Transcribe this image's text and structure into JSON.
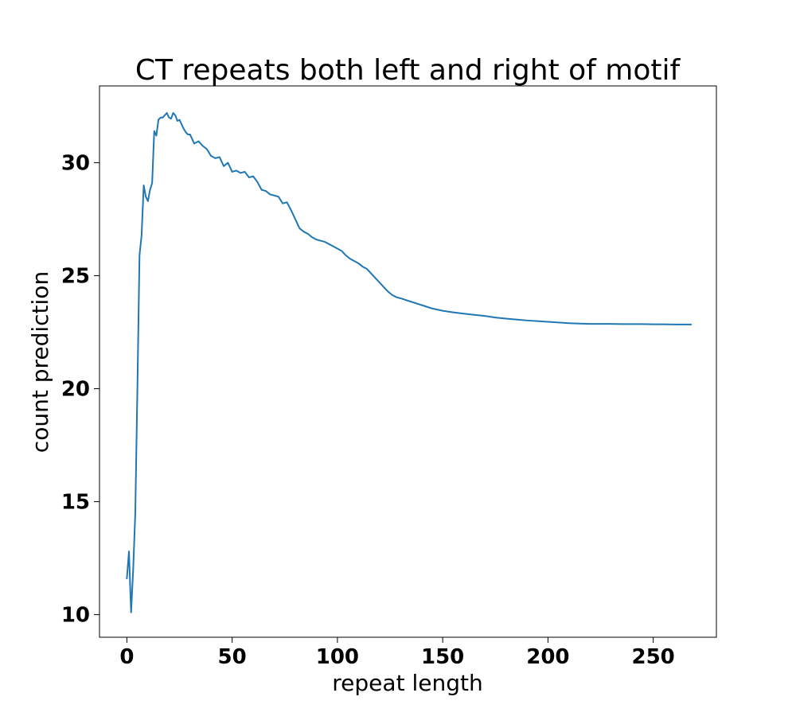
{
  "chart_data": {
    "type": "line",
    "title": "CT repeats both left and right of motif",
    "xlabel": "repeat length",
    "ylabel": "count prediction",
    "xlim": [
      -13,
      280
    ],
    "ylim": [
      9.0,
      33.4
    ],
    "xticks": [
      0,
      50,
      100,
      150,
      200,
      250
    ],
    "yticks": [
      10,
      15,
      20,
      25,
      30
    ],
    "x_tick_labels": [
      "0",
      "50",
      "100",
      "150",
      "200",
      "250"
    ],
    "y_tick_labels": [
      "10",
      "15",
      "20",
      "25",
      "30"
    ],
    "grid": false,
    "legend": "none",
    "series": [
      {
        "color": "#1f77b4",
        "x": [
          0,
          1,
          2,
          3,
          4,
          5,
          6,
          7,
          8,
          9,
          10,
          11,
          12,
          13,
          14,
          15,
          16,
          17,
          18,
          19,
          20,
          21,
          22,
          23,
          24,
          25,
          26,
          27,
          28,
          29,
          30,
          32,
          34,
          36,
          38,
          40,
          42,
          44,
          46,
          48,
          50,
          52,
          54,
          56,
          58,
          60,
          62,
          64,
          66,
          68,
          70,
          72,
          74,
          76,
          78,
          80,
          82,
          84,
          86,
          88,
          90,
          92,
          94,
          96,
          98,
          100,
          102,
          104,
          106,
          108,
          110,
          112,
          114,
          116,
          118,
          120,
          122,
          124,
          126,
          128,
          130,
          135,
          140,
          145,
          150,
          155,
          160,
          165,
          170,
          175,
          180,
          185,
          190,
          195,
          200,
          205,
          210,
          215,
          220,
          225,
          230,
          235,
          240,
          245,
          250,
          255,
          260,
          265,
          268
        ],
        "y": [
          11.6,
          12.8,
          10.1,
          12.0,
          14.5,
          20.0,
          25.9,
          26.8,
          29.0,
          28.5,
          28.3,
          28.8,
          29.1,
          31.4,
          31.2,
          31.9,
          32.0,
          32.0,
          32.1,
          32.2,
          32.0,
          31.95,
          32.2,
          32.1,
          31.85,
          31.9,
          31.7,
          31.5,
          31.35,
          31.25,
          31.25,
          30.85,
          30.95,
          30.75,
          30.6,
          30.3,
          30.2,
          30.25,
          29.85,
          30.0,
          29.6,
          29.65,
          29.55,
          29.6,
          29.35,
          29.4,
          29.15,
          28.8,
          28.75,
          28.6,
          28.55,
          28.5,
          28.2,
          28.25,
          27.9,
          27.5,
          27.1,
          26.95,
          26.85,
          26.7,
          26.6,
          26.55,
          26.5,
          26.4,
          26.3,
          26.2,
          26.1,
          25.9,
          25.75,
          25.65,
          25.55,
          25.4,
          25.3,
          25.1,
          24.9,
          24.7,
          24.5,
          24.3,
          24.15,
          24.05,
          24.0,
          23.85,
          23.7,
          23.55,
          23.45,
          23.38,
          23.32,
          23.27,
          23.22,
          23.15,
          23.1,
          23.06,
          23.02,
          22.99,
          22.96,
          22.93,
          22.9,
          22.88,
          22.87,
          22.87,
          22.87,
          22.86,
          22.86,
          22.86,
          22.85,
          22.85,
          22.84,
          22.84,
          22.84
        ]
      }
    ]
  }
}
